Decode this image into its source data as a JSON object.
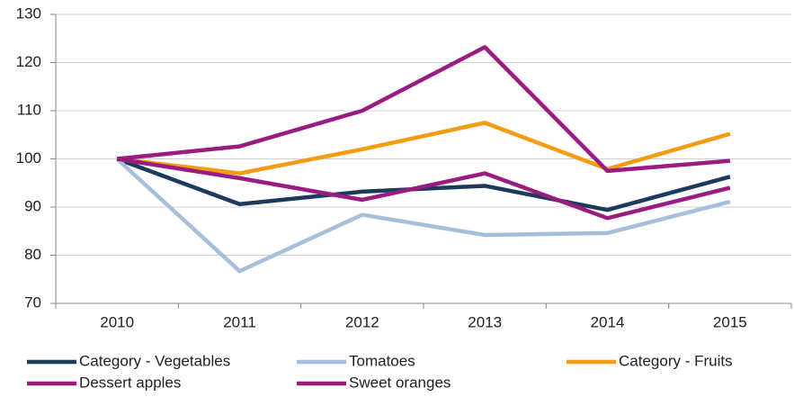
{
  "chart_data": {
    "type": "line",
    "categories": [
      "2010",
      "2011",
      "2012",
      "2013",
      "2014",
      "2015"
    ],
    "series": [
      {
        "name": "Category - Vegetables",
        "color": "#1b3a5c",
        "values": [
          100,
          90.6,
          93.2,
          94.4,
          89.4,
          96.3
        ]
      },
      {
        "name": "Tomatoes",
        "color": "#a8bfdc",
        "values": [
          100,
          76.7,
          88.4,
          84.2,
          84.6,
          91.1
        ]
      },
      {
        "name": "Category - Fruits",
        "color": "#f39c12",
        "values": [
          100,
          97,
          102,
          107.5,
          97.9,
          105.2
        ]
      },
      {
        "name": "Dessert apples",
        "color": "#9a1c80",
        "values": [
          100,
          96,
          91.5,
          97,
          87.7,
          94
        ]
      },
      {
        "name": "Sweet oranges",
        "color": "#9a1c80",
        "values": [
          100,
          102.6,
          110,
          123.2,
          97.5,
          99.6
        ]
      }
    ],
    "ylim": [
      70,
      130
    ],
    "yticks": [
      70,
      80,
      90,
      100,
      110,
      120,
      130
    ],
    "grid": true,
    "legend": "bottom"
  }
}
